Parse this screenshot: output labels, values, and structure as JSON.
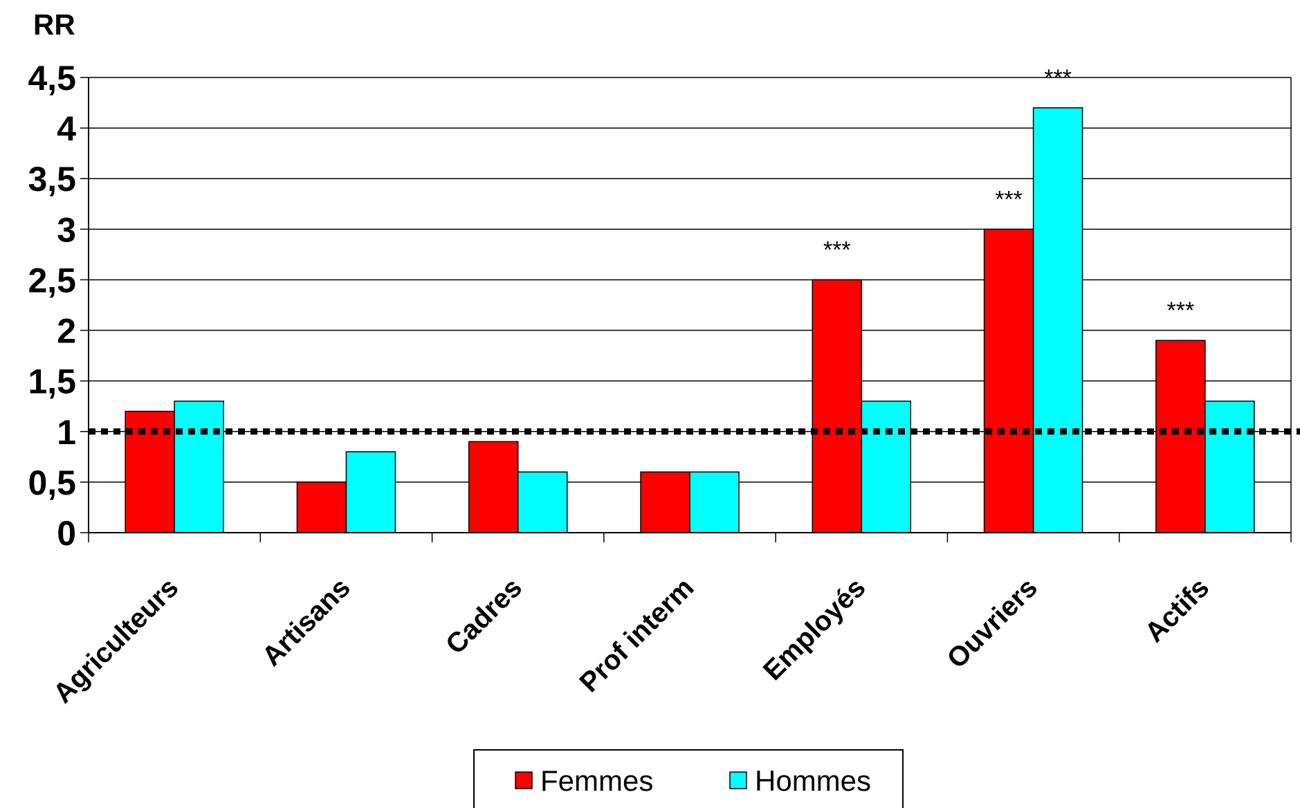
{
  "chart_data": {
    "type": "bar",
    "ylabel": "RR",
    "xlabel": "",
    "title": "",
    "ylim": [
      0,
      4.5
    ],
    "yticks": [
      "0",
      "0,5",
      "1",
      "1,5",
      "2",
      "2,5",
      "3",
      "3,5",
      "4",
      "4,5"
    ],
    "ytick_values": [
      0,
      0.5,
      1,
      1.5,
      2,
      2.5,
      3,
      3.5,
      4,
      4.5
    ],
    "categories": [
      "Agriculteurs",
      "Artisans",
      "Cadres",
      "Prof interm",
      "Employés",
      "Ouvriers",
      "Actifs"
    ],
    "series": [
      {
        "name": "Femmes",
        "color": "#ff0000",
        "values": [
          1.2,
          0.5,
          0.9,
          0.6,
          2.5,
          3.0,
          1.9
        ],
        "significance": [
          "",
          "",
          "",
          "",
          "***",
          "***",
          "***"
        ]
      },
      {
        "name": "Hommes",
        "color": "#00ffff",
        "values": [
          1.3,
          0.8,
          0.6,
          0.6,
          1.3,
          4.2,
          1.3
        ],
        "significance": [
          "",
          "",
          "",
          "",
          "",
          "***",
          ""
        ]
      }
    ],
    "reference_line": {
      "value": 1,
      "style": "dotted"
    },
    "grid": true,
    "legend_position": "bottom"
  }
}
